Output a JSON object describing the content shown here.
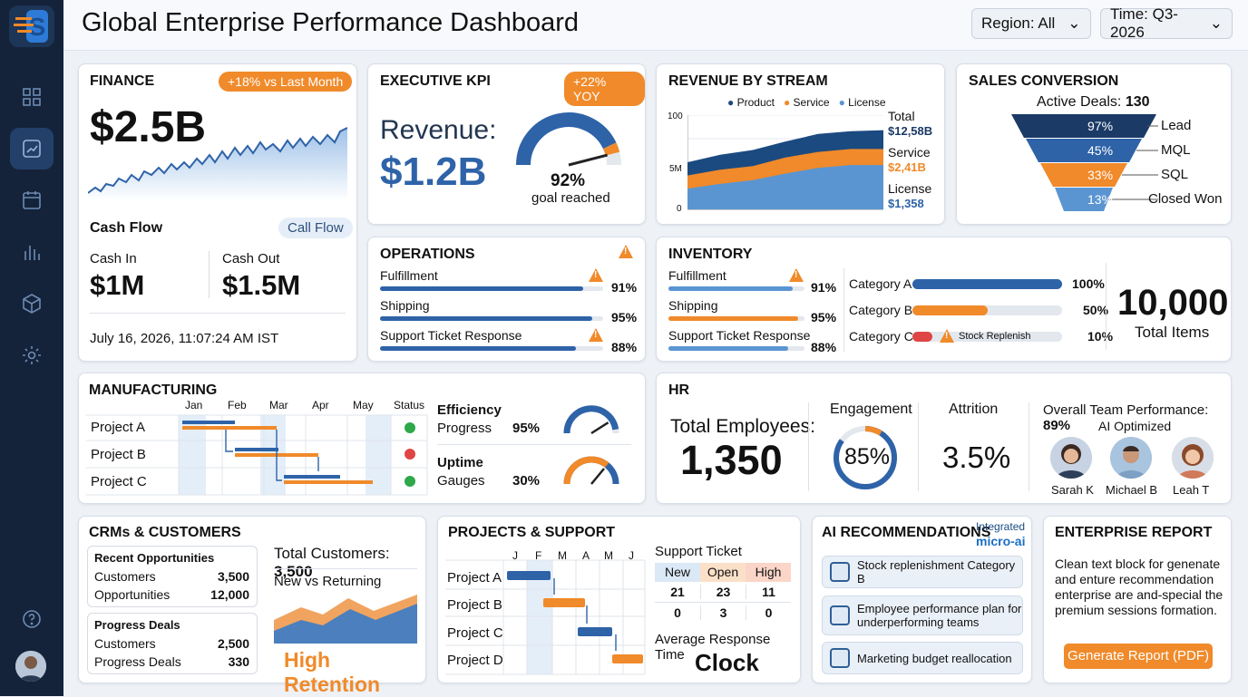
{
  "header": {
    "title": "Global Enterprise Performance Dashboard",
    "region": "Region: All",
    "time": "Time: Q3-2026"
  },
  "finance": {
    "title": "FINANCE",
    "badge": "+18% vs Last Month",
    "value": "$2.5B",
    "cash_flow": "Cash Flow",
    "call_flow": "Call Flow",
    "cash_in_label": "Cash In",
    "cash_in": "$1M",
    "cash_out_label": "Cash Out",
    "cash_out": "$1.5M",
    "timestamp": "July 16, 2026, 11:07:24 AM IST"
  },
  "kpi": {
    "title": "EXECUTIVE KPI",
    "badge": "+22% YOY",
    "revenue_label": "Revenue:",
    "revenue": "$1.2B",
    "gauge_value": "92%",
    "gauge_fraction": 0.92,
    "gauge_label": "goal reached"
  },
  "revenue_stream": {
    "title": "REVENUE BY STREAM",
    "legend": [
      "Product",
      "Service",
      "License"
    ],
    "total_label": "Total",
    "total": "$12,58B",
    "service_label": "Service",
    "service": "$2,41B",
    "license_label": "License",
    "license": "$1,358"
  },
  "chart_data": [
    {
      "type": "area",
      "title": "REVENUE BY STREAM",
      "yticks": [
        "100",
        "5M",
        "0"
      ],
      "series": [
        {
          "name": "Product",
          "values": [
            50,
            58,
            63,
            72,
            80,
            83,
            84
          ]
        },
        {
          "name": "Service",
          "values": [
            36,
            42,
            46,
            55,
            61,
            64,
            64
          ]
        },
        {
          "name": "License",
          "values": [
            22,
            27,
            31,
            38,
            44,
            47,
            47
          ]
        }
      ]
    }
  ],
  "sales": {
    "title": "SALES CONVERSION",
    "active_label": "Active Deals:",
    "active": "130",
    "stages": [
      {
        "pct": "97%",
        "label": "Lead"
      },
      {
        "pct": "45%",
        "label": "MQL"
      },
      {
        "pct": "33%",
        "label": "SQL"
      },
      {
        "pct": "13%",
        "label": "Closed Won"
      }
    ]
  },
  "operations": {
    "title": "OPERATIONS",
    "items": [
      {
        "label": "Fulfillment",
        "pct": "91%",
        "value": 0.91
      },
      {
        "label": "Shipping",
        "pct": "95%",
        "value": 0.95
      },
      {
        "label": "Support Ticket Response",
        "pct": "88%",
        "value": 0.88
      }
    ]
  },
  "inventory": {
    "title": "INVENTORY",
    "items": [
      {
        "label": "Fulfillment",
        "pct": "91%",
        "value": 0.91
      },
      {
        "label": "Shipping",
        "pct": "95%",
        "value": 0.95
      },
      {
        "label": "Support Ticket Response",
        "pct": "88%",
        "value": 0.88
      }
    ],
    "categories": [
      {
        "label": "Category A",
        "pct": "100%",
        "value": 1.0
      },
      {
        "label": "Category B",
        "pct": "50%",
        "value": 0.5
      },
      {
        "label": "Category C",
        "pct": "10%",
        "value": 0.1
      }
    ],
    "stock_note": "Stock Replenish",
    "total": "10,000",
    "total_label": "Total Items"
  },
  "manufacturing": {
    "title": "MANUFACTURING",
    "months": [
      "Jan",
      "Feb",
      "Mar",
      "Apr",
      "May"
    ],
    "status_label": "Status",
    "projects": [
      "Project A",
      "Project B",
      "Project C"
    ],
    "efficiency_label": "Efficiency",
    "progress_label": "Progress",
    "progress": "95%",
    "progress_value": 0.95,
    "uptime_label": "Uptime",
    "gauges_label": "Gauges",
    "gauges": "30%",
    "gauges_value": 0.3
  },
  "hr": {
    "title": "HR",
    "total_label": "Total Employees:",
    "total": "1,350",
    "engagement_label": "Engagement",
    "engagement": "85%",
    "engagement_value": 0.85,
    "attrition_label": "Attrition",
    "attrition": "3.5%",
    "performance_label": "Overall Team Performance:",
    "performance": "89%",
    "ai_optimized": "AI Optimized",
    "people": [
      "Sarah K",
      "Michael B",
      "Leah T"
    ]
  },
  "crm": {
    "title": "CRMs & CUSTOMERS",
    "recent_title": "Recent Opportunities",
    "recent": [
      {
        "label": "Customers",
        "value": "3,500"
      },
      {
        "label": "Opportunities",
        "value": "12,000"
      }
    ],
    "progress_title": "Progress Deals",
    "progress": [
      {
        "label": "Customers",
        "value": "2,500"
      },
      {
        "label": "Progress Deals",
        "value": "330"
      }
    ],
    "total_label": "Total Customers:",
    "total": "3,500",
    "new_vs_returning": "New vs Returning",
    "retention": "High Retention"
  },
  "projects": {
    "title": "PROJECTS & SUPPORT",
    "months": [
      "J",
      "F",
      "M",
      "A",
      "M",
      "J"
    ],
    "rows": [
      "Project A",
      "Project B",
      "Project C",
      "Project D"
    ],
    "ticket_title": "Support Ticket",
    "ticket_headers": [
      "New",
      "Open",
      "High"
    ],
    "ticket_rows": [
      [
        "21",
        "23",
        "11"
      ],
      [
        "0",
        "3",
        "0"
      ]
    ],
    "avg_label": "Average Response Time",
    "avg_value": "Clock"
  },
  "ai": {
    "title": "AI RECOMMENDATIONS",
    "integrated": "Integrated",
    "micro": "micro-ai",
    "items": [
      "Stock replenishment Category B",
      "Employee performance plan for underperforming teams",
      "Marketing budget reallocation"
    ]
  },
  "report": {
    "title": "ENTERPRISE REPORT",
    "text": "Clean text block for genenate and enture recommendation enterprise are and-special the premium sessions formation.",
    "button": "Generate Report (PDF)"
  }
}
